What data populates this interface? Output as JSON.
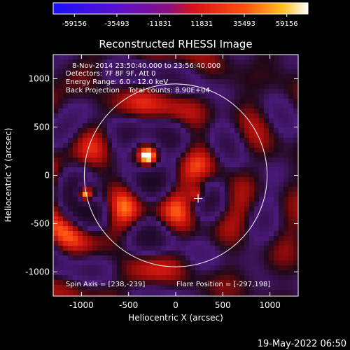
{
  "colorbar": {
    "ticks": [
      "-59156",
      "-35493",
      "-11831",
      "11831",
      "35493",
      "59156"
    ],
    "range": [
      -59156,
      59156
    ],
    "colors": [
      "#1a10ff",
      "#5a10cf",
      "#a01080",
      "#d8101a",
      "#ff5010",
      "#ffc020",
      "#ffffff"
    ]
  },
  "chart_data": {
    "type": "heatmap",
    "title": "Reconstructed RHESSI Image",
    "xlabel": "Heliocentric X (arcsec)",
    "ylabel": "Heliocentric Y (arcsec)",
    "xlim": [
      -1300,
      1300
    ],
    "ylim": [
      -1250,
      1250
    ],
    "xticks": [
      {
        "value": -1000,
        "label": "-1000"
      },
      {
        "value": -500,
        "label": "-500"
      },
      {
        "value": 0,
        "label": "0"
      },
      {
        "value": 500,
        "label": "500"
      },
      {
        "value": 1000,
        "label": "1000"
      }
    ],
    "yticks": [
      {
        "value": 1000,
        "label": "1000"
      },
      {
        "value": 500,
        "label": "500"
      },
      {
        "value": 0,
        "label": "0"
      },
      {
        "value": -500,
        "label": "-500"
      },
      {
        "value": -1000,
        "label": "-1000"
      }
    ],
    "annotations": [
      "8-Nov-2014 23:50:40.000 to 23:56:40.000",
      "Detectors: 7F 8F 9F, Att 0",
      "Energy Range: 6.0 - 12.0 keV",
      "Back Projection    Total counts: 8.90E+04"
    ],
    "footer_left": "Spin Axis = [238,-239]",
    "footer_right": "Flare Position = [-297,198]",
    "solar_disk_radius": 970,
    "spin_axis_marker": [
      238,
      -239
    ],
    "bright_sources": [
      {
        "x": -297,
        "y": 198,
        "amplitude": 1.0
      },
      {
        "x": -960,
        "y": -200,
        "amplitude": 0.85
      },
      {
        "x": 238,
        "y": -200,
        "amplitude": 0.55
      }
    ]
  },
  "timestamp": "19-May-2022 06:50"
}
